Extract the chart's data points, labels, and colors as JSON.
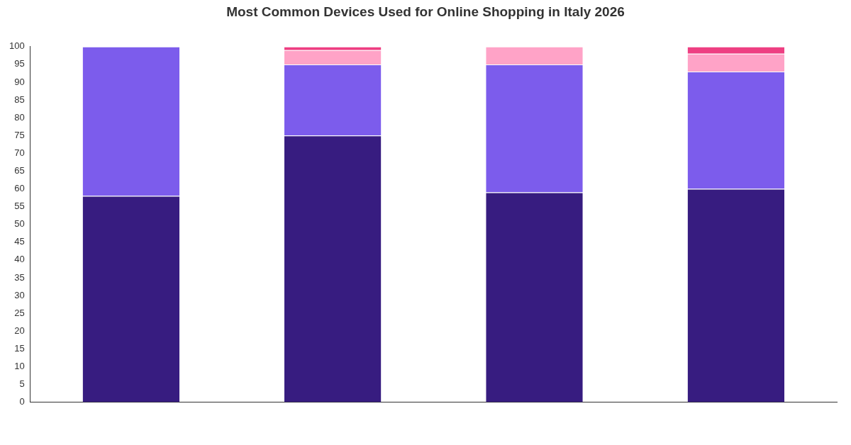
{
  "chart_data": {
    "type": "bar",
    "title": "Most Common Devices Used for Online Shopping in Italy 2026",
    "stacked": true,
    "categories": [
      null,
      null,
      null,
      null
    ],
    "series": [
      {
        "color": "#371c80",
        "values": [
          58,
          75,
          59,
          60
        ]
      },
      {
        "color": "#7c5cec",
        "values": [
          42,
          20,
          36,
          33
        ]
      },
      {
        "color": "#ffa3c7",
        "values": [
          0,
          4,
          5,
          5
        ]
      },
      {
        "color": "#ee3f82",
        "values": [
          0,
          1,
          0,
          2
        ]
      }
    ],
    "ylim": [
      0,
      100
    ],
    "yticks": [
      0,
      5,
      10,
      15,
      20,
      25,
      30,
      35,
      40,
      45,
      50,
      55,
      60,
      65,
      70,
      75,
      80,
      85,
      90,
      95,
      100
    ],
    "grid": false,
    "legend": false
  }
}
